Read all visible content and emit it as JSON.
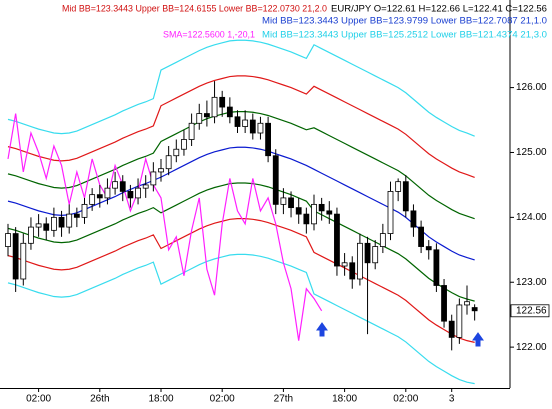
{
  "chart_data": {
    "type": "candlestick",
    "annotations": [
      {
        "text": "Mid BB=123.3443 Upper BB=124.6155 Lower BB=122.0730 21,2.0",
        "color": "#d01010"
      },
      {
        "text": "EUR/JPY O=122.61 H=122.66 L=122.41 C=122.56",
        "color": "#000000"
      },
      {
        "text": "Mid BB=123.3443 Upper BB=123.9799 Lower BB=122.7087 21,1.0",
        "color": "#1a3fd0"
      },
      {
        "text": "SMA=122.5600 1,-20,1",
        "color": "#ff20ff"
      },
      {
        "text": "Mid BB=123.3443 Upper BB=125.2512 Lower BB=121.4374 21,3.0",
        "color": "#20d0e8"
      }
    ],
    "categories": [
      null,
      null,
      null,
      null,
      "02:00",
      null,
      null,
      null,
      null,
      null,
      null,
      null,
      "26th",
      null,
      null,
      null,
      null,
      null,
      null,
      null,
      "18:00",
      null,
      null,
      null,
      null,
      null,
      null,
      null,
      "02:00",
      null,
      null,
      null,
      null,
      null,
      null,
      null,
      "27th",
      null,
      null,
      null,
      null,
      null,
      null,
      null,
      "18:00",
      null,
      null,
      null,
      null,
      null,
      null,
      null,
      "02:00",
      null,
      null,
      null,
      null,
      null,
      "3",
      null,
      null,
      null
    ],
    "open": [
      123.55,
      123.75,
      123.05,
      123.6,
      123.85,
      123.9,
      123.8,
      124.0,
      123.85,
      124.05,
      124.0,
      124.2,
      124.35,
      124.3,
      124.45,
      124.55,
      124.4,
      124.3,
      124.45,
      124.5,
      124.7,
      124.75,
      124.95,
      125.05,
      125.2,
      125.45,
      125.6,
      125.55,
      125.85,
      125.7,
      125.55,
      125.4,
      125.5,
      125.3,
      125.45,
      124.95,
      124.2,
      124.3,
      124.15,
      124.05,
      123.9,
      124.2,
      124.1,
      124.05,
      123.25,
      123.3,
      123.05,
      123.6,
      123.3,
      123.55,
      123.75,
      124.4,
      124.55,
      124.1,
      123.85,
      123.55,
      123.5,
      122.95,
      122.4,
      122.15,
      122.65,
      122.61
    ],
    "high": [
      123.9,
      123.85,
      123.75,
      124.0,
      124.05,
      124.0,
      124.15,
      124.1,
      124.2,
      124.15,
      124.3,
      124.45,
      124.5,
      124.6,
      124.7,
      124.65,
      124.5,
      124.6,
      124.65,
      124.85,
      124.9,
      125.1,
      125.2,
      125.35,
      125.6,
      125.75,
      125.8,
      126.1,
      125.95,
      125.85,
      125.65,
      125.65,
      125.6,
      125.55,
      125.55,
      125.05,
      124.45,
      124.4,
      124.3,
      124.15,
      124.35,
      124.3,
      124.25,
      124.15,
      123.45,
      123.4,
      123.75,
      123.7,
      123.65,
      123.9,
      124.55,
      124.6,
      124.65,
      124.2,
      123.95,
      123.65,
      123.6,
      123.05,
      122.5,
      122.75,
      122.95,
      122.66
    ],
    "low": [
      123.4,
      122.85,
      122.95,
      123.5,
      123.7,
      123.65,
      123.7,
      123.7,
      123.75,
      123.85,
      123.9,
      124.1,
      124.15,
      124.2,
      124.35,
      124.25,
      124.15,
      124.2,
      124.3,
      124.4,
      124.55,
      124.65,
      124.85,
      124.95,
      125.1,
      125.35,
      125.4,
      125.45,
      125.55,
      125.45,
      125.3,
      125.3,
      125.2,
      125.2,
      124.85,
      124.05,
      124.05,
      124.0,
      123.9,
      123.75,
      123.8,
      123.95,
      123.9,
      123.1,
      123.1,
      122.9,
      122.95,
      122.2,
      123.2,
      123.45,
      123.65,
      124.25,
      124.0,
      123.7,
      123.45,
      123.35,
      122.85,
      122.3,
      121.95,
      122.05,
      122.5,
      122.41
    ],
    "close": [
      123.75,
      123.05,
      123.6,
      123.85,
      123.9,
      123.8,
      124.0,
      123.85,
      124.05,
      124.0,
      124.2,
      124.35,
      124.3,
      124.45,
      124.55,
      124.4,
      124.3,
      124.45,
      124.5,
      124.7,
      124.75,
      124.95,
      125.05,
      125.2,
      125.45,
      125.6,
      125.55,
      125.85,
      125.7,
      125.55,
      125.4,
      125.5,
      125.3,
      125.45,
      124.95,
      124.2,
      124.3,
      124.15,
      124.05,
      123.9,
      124.2,
      124.1,
      124.05,
      123.25,
      123.3,
      123.05,
      123.6,
      123.3,
      123.55,
      123.75,
      124.4,
      124.55,
      124.1,
      123.85,
      123.55,
      123.5,
      122.95,
      122.4,
      122.15,
      122.65,
      122.7,
      122.56
    ],
    "up_color": "#ffffff",
    "down_color": "#000000",
    "series": [
      {
        "color": "#0a1ad0",
        "values": [
          124.25,
          124.22,
          124.18,
          124.14,
          124.1,
          124.07,
          124.04,
          124.03,
          124.04,
          124.07,
          124.12,
          124.17,
          124.22,
          124.27,
          124.32,
          124.38,
          124.43,
          124.48,
          124.52,
          124.57,
          124.62,
          124.68,
          124.74,
          124.8,
          124.86,
          124.92,
          124.97,
          125.01,
          125.04,
          125.07,
          125.08,
          125.08,
          125.07,
          125.05,
          125.02,
          124.98,
          124.94,
          124.9,
          124.85,
          124.8,
          124.74,
          124.68,
          124.62,
          124.56,
          124.5,
          124.44,
          124.38,
          124.32,
          124.26,
          124.2,
          124.14,
          124.08,
          124.0,
          123.9,
          123.8,
          123.7,
          123.62,
          123.55,
          123.48,
          123.42,
          123.38,
          123.3443
        ]
      },
      {
        "color": "#006400",
        "values": [
          124.67,
          124.64,
          124.6,
          124.56,
          124.52,
          124.49,
          124.46,
          124.45,
          124.46,
          124.49,
          124.54,
          124.59,
          124.64,
          124.69,
          124.74,
          124.8,
          124.85,
          124.9,
          124.94,
          124.99,
          125.17,
          125.23,
          125.29,
          125.35,
          125.41,
          125.47,
          125.52,
          125.56,
          125.59,
          125.62,
          125.63,
          125.63,
          125.62,
          125.6,
          125.57,
          125.53,
          125.49,
          125.45,
          125.4,
          125.35,
          125.38,
          125.32,
          125.26,
          125.2,
          125.14,
          125.08,
          125.02,
          124.96,
          124.9,
          124.84,
          124.78,
          124.72,
          124.64,
          124.54,
          124.44,
          124.34,
          124.26,
          124.19,
          124.12,
          124.06,
          124.02,
          123.9799
        ]
      },
      {
        "color": "#006400",
        "values": [
          123.83,
          123.8,
          123.76,
          123.72,
          123.68,
          123.65,
          123.62,
          123.61,
          123.62,
          123.65,
          123.7,
          123.75,
          123.8,
          123.85,
          123.9,
          123.96,
          124.01,
          124.06,
          124.1,
          124.15,
          124.07,
          124.13,
          124.19,
          124.25,
          124.31,
          124.37,
          124.42,
          124.46,
          124.49,
          124.52,
          124.53,
          124.53,
          124.52,
          124.5,
          124.47,
          124.43,
          124.39,
          124.35,
          124.3,
          124.25,
          124.1,
          124.04,
          123.98,
          123.92,
          123.86,
          123.8,
          123.74,
          123.68,
          123.62,
          123.56,
          123.5,
          123.44,
          123.36,
          123.26,
          123.16,
          123.06,
          122.98,
          122.91,
          122.84,
          122.78,
          122.74,
          122.7087
        ]
      },
      {
        "color": "#e01818",
        "values": [
          125.09,
          125.06,
          125.02,
          124.98,
          124.94,
          124.91,
          124.88,
          124.87,
          124.88,
          124.91,
          124.96,
          125.01,
          125.06,
          125.11,
          125.16,
          125.22,
          125.27,
          125.32,
          125.36,
          125.41,
          125.72,
          125.78,
          125.84,
          125.9,
          125.96,
          126.02,
          126.07,
          126.11,
          126.14,
          126.17,
          126.18,
          126.18,
          126.17,
          126.15,
          126.12,
          126.08,
          126.04,
          126.0,
          125.95,
          125.9,
          126.02,
          125.96,
          125.9,
          125.84,
          125.78,
          125.72,
          125.66,
          125.6,
          125.54,
          125.48,
          125.42,
          125.36,
          125.28,
          125.18,
          125.08,
          124.98,
          124.9,
          124.83,
          124.76,
          124.7,
          124.66,
          124.6155
        ]
      },
      {
        "color": "#e01818",
        "values": [
          123.41,
          123.38,
          123.34,
          123.3,
          123.26,
          123.23,
          123.2,
          123.19,
          123.2,
          123.23,
          123.28,
          123.33,
          123.38,
          123.43,
          123.48,
          123.54,
          123.59,
          123.64,
          123.68,
          123.73,
          123.52,
          123.58,
          123.64,
          123.7,
          123.76,
          123.82,
          123.87,
          123.91,
          123.94,
          123.97,
          123.98,
          123.98,
          123.97,
          123.95,
          123.92,
          123.88,
          123.84,
          123.8,
          123.75,
          123.7,
          123.46,
          123.4,
          123.34,
          123.28,
          123.22,
          123.16,
          123.1,
          123.04,
          122.98,
          122.92,
          122.86,
          122.8,
          122.72,
          122.62,
          122.52,
          122.42,
          122.34,
          122.27,
          122.2,
          122.14,
          122.1,
          122.073
        ]
      },
      {
        "color": "#38dcee",
        "values": [
          125.51,
          125.48,
          125.44,
          125.4,
          125.36,
          125.33,
          125.3,
          125.29,
          125.3,
          125.33,
          125.38,
          125.43,
          125.48,
          125.53,
          125.58,
          125.64,
          125.69,
          125.74,
          125.78,
          125.83,
          126.27,
          126.33,
          126.39,
          126.45,
          126.51,
          126.57,
          126.62,
          126.66,
          126.69,
          126.72,
          126.73,
          126.73,
          126.72,
          126.7,
          126.67,
          126.63,
          126.59,
          126.55,
          126.5,
          126.45,
          126.66,
          126.6,
          126.54,
          126.48,
          126.42,
          126.36,
          126.3,
          126.24,
          126.18,
          126.12,
          126.06,
          126.0,
          125.92,
          125.82,
          125.72,
          125.62,
          125.54,
          125.47,
          125.4,
          125.34,
          125.3,
          125.2512
        ]
      },
      {
        "color": "#38dcee",
        "values": [
          122.99,
          122.96,
          122.92,
          122.88,
          122.84,
          122.81,
          122.78,
          122.77,
          122.78,
          122.81,
          122.86,
          122.91,
          122.96,
          123.01,
          123.06,
          123.12,
          123.17,
          123.22,
          123.26,
          123.31,
          122.97,
          123.03,
          123.09,
          123.15,
          123.21,
          123.27,
          123.32,
          123.36,
          123.39,
          123.42,
          123.43,
          123.43,
          123.42,
          123.4,
          123.37,
          123.33,
          123.29,
          123.25,
          123.2,
          123.15,
          122.82,
          122.76,
          122.7,
          122.64,
          122.58,
          122.52,
          122.46,
          122.4,
          122.34,
          122.28,
          122.22,
          122.16,
          122.08,
          121.98,
          121.88,
          121.78,
          121.7,
          121.63,
          121.56,
          121.5,
          121.46,
          121.4374
        ]
      },
      {
        "color": "#ff20ff",
        "values": [
          124.9,
          125.6,
          124.7,
          125.3,
          125.0,
          124.6,
          125.1,
          124.8,
          124.2,
          124.7,
          124.3,
          124.9,
          124.5,
          124.3,
          124.8,
          124.5,
          124.1,
          124.4,
          124.9,
          124.5,
          124.3,
          123.5,
          123.7,
          123.1,
          123.8,
          124.3,
          123.2,
          122.8,
          123.9,
          124.6,
          124.1,
          123.9,
          124.6,
          124.1,
          124.3,
          123.9,
          123.3,
          122.9,
          122.1,
          122.9,
          122.75,
          122.56,
          null,
          null,
          null,
          null,
          null,
          null,
          null,
          null,
          null,
          null,
          null,
          null,
          null,
          null,
          null,
          null,
          null,
          null,
          null,
          null
        ]
      }
    ],
    "ylim": [
      121.37,
      127.35
    ],
    "yticks": [
      {
        "value": 122,
        "label": "122.00"
      },
      {
        "value": 123,
        "label": "123.00"
      },
      {
        "value": 124,
        "label": "124.00"
      },
      {
        "value": 125,
        "label": "125.00"
      },
      {
        "value": 126,
        "label": "126.00"
      }
    ],
    "grid": false
  }
}
